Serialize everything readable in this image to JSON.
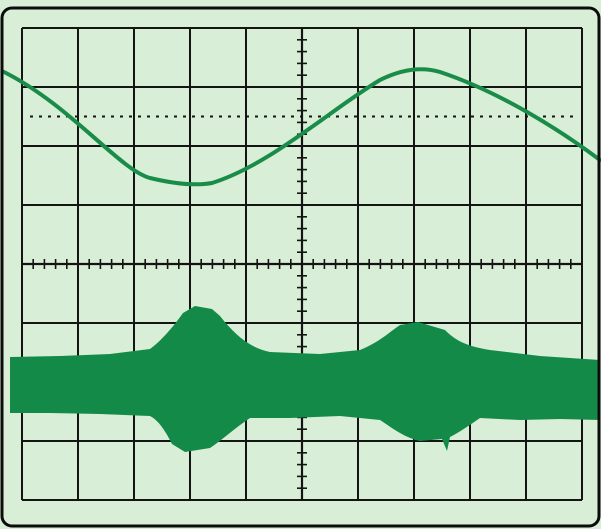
{
  "screen": {
    "background": "#d8eed6",
    "frame_color": "#0c0c0c",
    "grid_color": "#141414",
    "trace_color": "#1a8c4a",
    "band_color": "#148a48"
  },
  "graticule": {
    "divisions_x": 10,
    "divisions_y": 8,
    "minor_ticks_per_division": 5,
    "dotted_reference_lines": true
  },
  "traces": [
    {
      "kind": "sine-wave",
      "periods_visible": 1.2,
      "min_division": 2.6,
      "max_division": 1.0
    },
    {
      "kind": "modulated-band",
      "bursts": 2
    }
  ]
}
